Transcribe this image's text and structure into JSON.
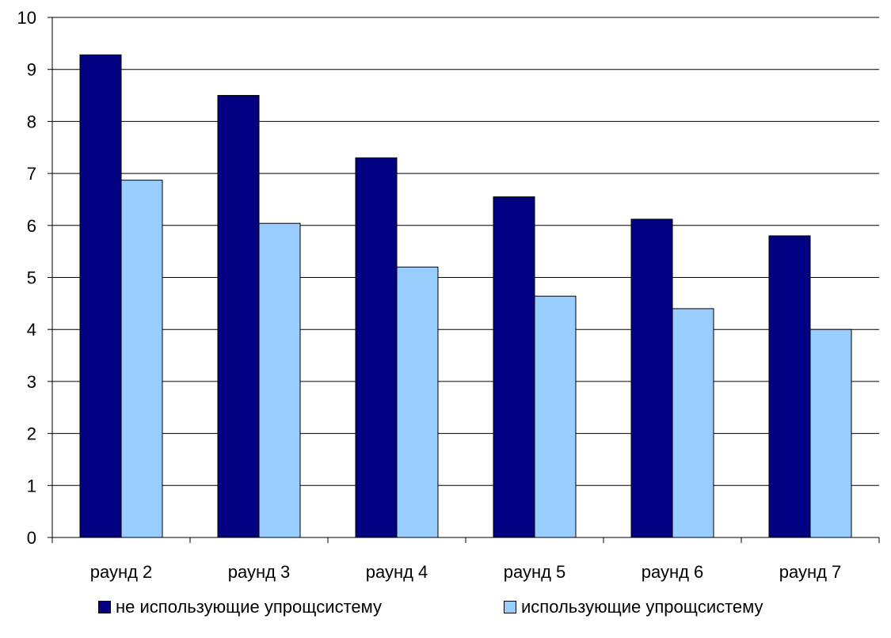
{
  "chart_data": {
    "type": "bar",
    "categories": [
      "раунд 2",
      "раунд 3",
      "раунд 4",
      "раунд 5",
      "раунд 6",
      "раунд 7"
    ],
    "series": [
      {
        "name": "не использующие упрощсистему",
        "values": [
          9.28,
          8.5,
          7.3,
          6.55,
          6.12,
          5.8
        ],
        "color": "#000080"
      },
      {
        "name": "использующие упрощсистему",
        "values": [
          6.87,
          6.04,
          5.2,
          4.64,
          4.4,
          4.0
        ],
        "color": "#99CCFF"
      }
    ],
    "ylim": [
      0,
      10
    ],
    "yticks": [
      "0",
      "1",
      "2",
      "3",
      "4",
      "5",
      "6",
      "7",
      "8",
      "9",
      "10"
    ],
    "grid": true,
    "legend_position": "bottom",
    "title": "",
    "xlabel": "",
    "ylabel": ""
  }
}
